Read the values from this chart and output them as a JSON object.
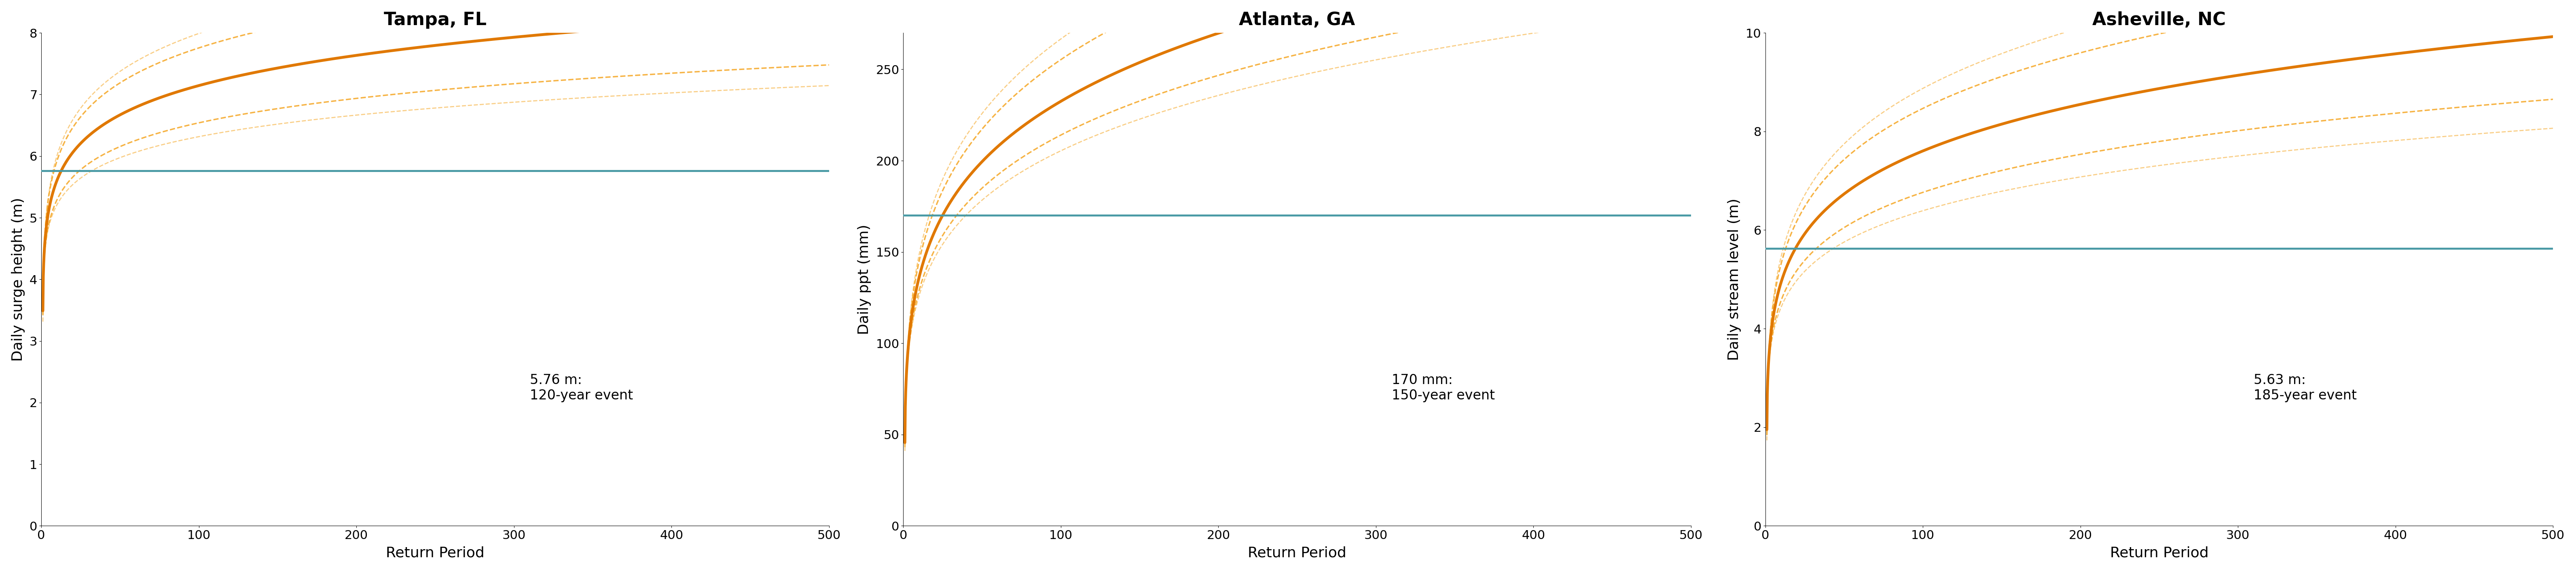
{
  "panels": [
    {
      "title": "Tampa, FL",
      "ylabel": "Daily surge height (m)",
      "ylim": [
        0,
        8
      ],
      "yticks": [
        0,
        1,
        2,
        3,
        4,
        5,
        6,
        7,
        8
      ],
      "hline_value": 5.76,
      "hline_color": "#4a9aa5",
      "annotation": "5.76 m:\n120-year event",
      "gev_mu": 4.3,
      "gev_sigma": 0.55,
      "gev_xi": 0.05,
      "ci_factor_upper": 0.18,
      "ci_factor_lower": 0.18
    },
    {
      "title": "Atlanta, GA",
      "ylabel": "Daily ppt (mm)",
      "ylim": [
        0,
        270
      ],
      "yticks": [
        0,
        50,
        100,
        150,
        200,
        250
      ],
      "hline_value": 170,
      "hline_color": "#4a9aa5",
      "annotation": "170 mm:\n150-year event",
      "gev_mu": 75,
      "gev_sigma": 22,
      "gev_xi": 0.18,
      "ci_factor_upper": 0.12,
      "ci_factor_lower": 0.1
    },
    {
      "title": "Asheville, NC",
      "ylabel": "Daily stream level (m)",
      "ylim": [
        0,
        10
      ],
      "yticks": [
        0,
        2,
        4,
        6,
        8,
        10
      ],
      "hline_value": 5.63,
      "hline_color": "#4a9aa5",
      "annotation": "5.63 m:\n185-year event",
      "gev_mu": 3.0,
      "gev_sigma": 0.75,
      "gev_xi": 0.12,
      "ci_factor_upper": 0.16,
      "ci_factor_lower": 0.16
    }
  ],
  "xlabel": "Return Period",
  "orange_color": "#f5a623",
  "orange_dark": "#e07800",
  "ci_color": "#f5a623",
  "xlim": [
    0,
    500
  ],
  "xticks": [
    0,
    100,
    200,
    300,
    400,
    500
  ]
}
